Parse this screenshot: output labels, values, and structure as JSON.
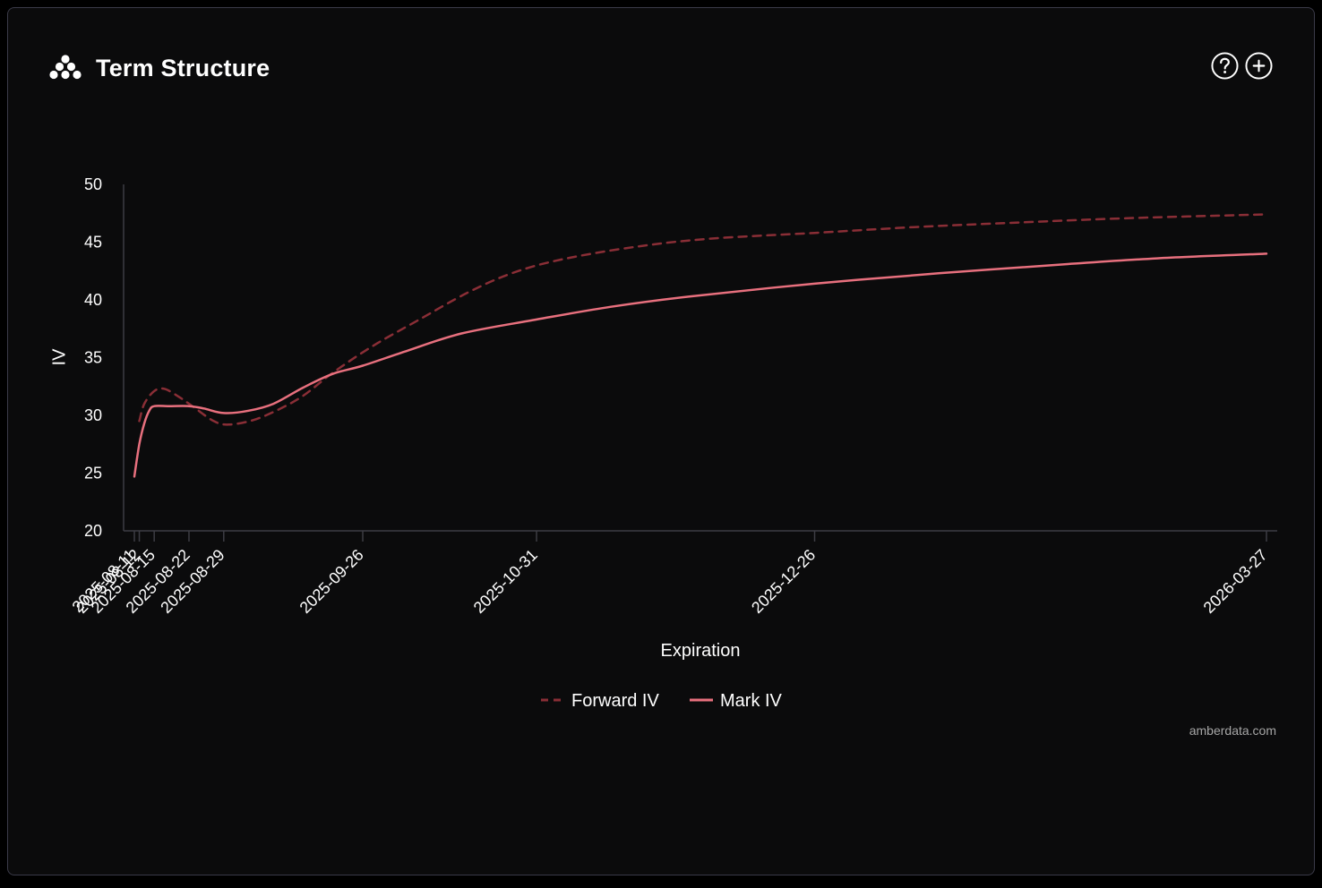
{
  "header": {
    "title": "Term Structure"
  },
  "icons": {
    "logo": "amberdata-logo-icon",
    "help": "question-circle-icon",
    "add": "plus-circle-icon"
  },
  "footer": {
    "source": "amberdata.com"
  },
  "colors": {
    "background": "#0b0b0c",
    "mark_iv": "#e8707e",
    "forward_iv": "#8a2e36",
    "axis": "#3d3d44"
  },
  "chart_data": {
    "type": "line",
    "xlabel": "Expiration",
    "ylabel": "IV",
    "ylim": [
      20,
      50
    ],
    "yticks": [
      20,
      25,
      30,
      35,
      40,
      45,
      50
    ],
    "xlim": [
      "2025-08-11",
      "2026-03-27"
    ],
    "xticks": [
      "2025-08-11",
      "2025-08-12",
      "2025-08-15",
      "2025-08-22",
      "2025-08-29",
      "2025-09-26",
      "2025-10-31",
      "2025-12-26",
      "2026-03-27"
    ],
    "legend": "bottom-center",
    "series": [
      {
        "name": "Forward IV",
        "style": "dashed",
        "color": "#8a2e36",
        "points": [
          [
            "2025-08-12",
            29.5
          ],
          [
            "2025-08-13",
            31.0
          ],
          [
            "2025-08-15",
            32.1
          ],
          [
            "2025-08-17",
            32.3
          ],
          [
            "2025-08-20",
            31.6
          ],
          [
            "2025-08-23",
            30.7
          ],
          [
            "2025-08-27",
            29.5
          ],
          [
            "2025-08-30",
            29.2
          ],
          [
            "2025-09-04",
            29.6
          ],
          [
            "2025-09-09",
            30.5
          ],
          [
            "2025-09-14",
            31.7
          ],
          [
            "2025-09-20",
            33.7
          ],
          [
            "2025-09-28",
            36.0
          ],
          [
            "2025-10-07",
            38.2
          ],
          [
            "2025-10-17",
            40.6
          ],
          [
            "2025-10-26",
            42.3
          ],
          [
            "2025-11-05",
            43.5
          ],
          [
            "2025-11-20",
            44.6
          ],
          [
            "2025-12-05",
            45.3
          ],
          [
            "2025-12-26",
            45.8
          ],
          [
            "2026-01-15",
            46.3
          ],
          [
            "2026-02-05",
            46.7
          ],
          [
            "2026-03-01",
            47.1
          ],
          [
            "2026-03-27",
            47.4
          ]
        ]
      },
      {
        "name": "Mark IV",
        "style": "solid",
        "color": "#e8707e",
        "points": [
          [
            "2025-08-11",
            24.7
          ],
          [
            "2025-08-12",
            27.5
          ],
          [
            "2025-08-13",
            29.3
          ],
          [
            "2025-08-14",
            30.4
          ],
          [
            "2025-08-15",
            30.8
          ],
          [
            "2025-08-18",
            30.8
          ],
          [
            "2025-08-22",
            30.8
          ],
          [
            "2025-08-25",
            30.6
          ],
          [
            "2025-08-29",
            30.2
          ],
          [
            "2025-09-03",
            30.4
          ],
          [
            "2025-09-08",
            31.0
          ],
          [
            "2025-09-14",
            32.4
          ],
          [
            "2025-09-20",
            33.6
          ],
          [
            "2025-09-26",
            34.3
          ],
          [
            "2025-10-05",
            35.6
          ],
          [
            "2025-10-16",
            37.1
          ],
          [
            "2025-10-31",
            38.3
          ],
          [
            "2025-11-15",
            39.4
          ],
          [
            "2025-12-01",
            40.3
          ],
          [
            "2025-12-26",
            41.4
          ],
          [
            "2026-01-20",
            42.3
          ],
          [
            "2026-02-15",
            43.1
          ],
          [
            "2026-03-05",
            43.6
          ],
          [
            "2026-03-27",
            44.0
          ]
        ]
      }
    ]
  }
}
